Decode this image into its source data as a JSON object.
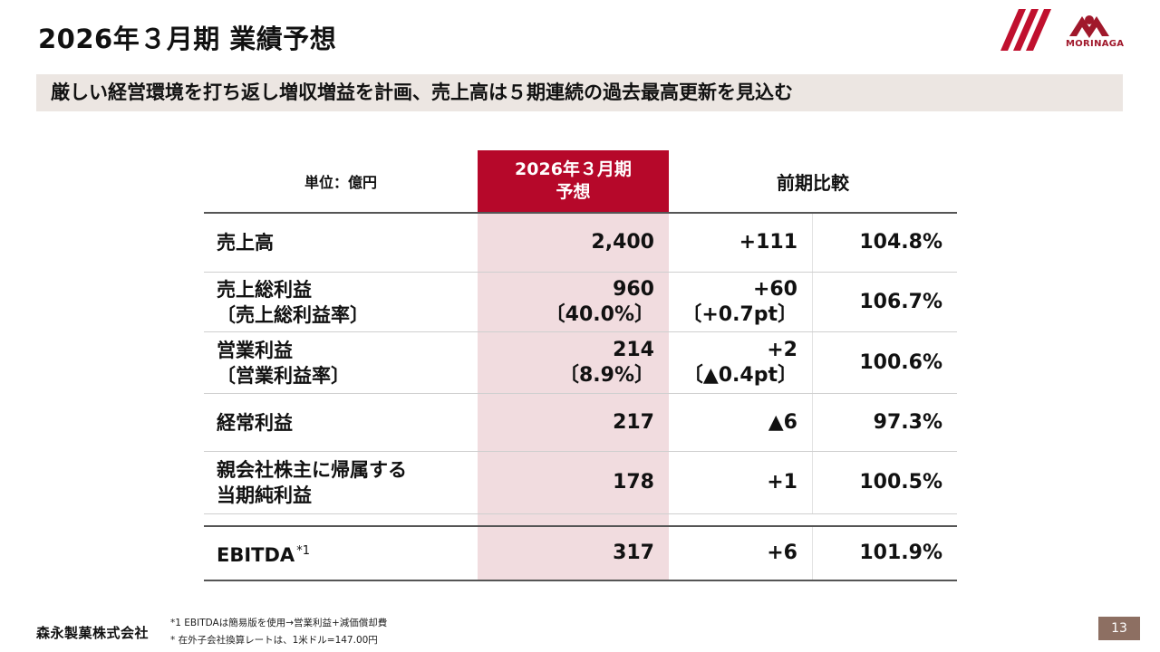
{
  "header": {
    "title": "2026年３月期 業績予想",
    "brand": "MORINAGA"
  },
  "subtitle": "厳しい経営環境を打ち返し増収増益を計画、売上高は５期連続の過去最高更新を見込む",
  "table": {
    "unit_label": "単位：億円",
    "forecast_header_line1": "2026年３月期",
    "forecast_header_line2": "予想",
    "compare_header": "前期比較",
    "rows": [
      {
        "label1": "売上高",
        "label2": "",
        "value1": "2,400",
        "value2": "",
        "diff1": "+111",
        "diff2": "",
        "pct": "104.8%"
      },
      {
        "label1": "売上総利益",
        "label2": "〔売上総利益率〕",
        "value1": "960",
        "value2": "〔40.0%〕",
        "diff1": "+60",
        "diff2": "〔+0.7pt〕",
        "pct": "106.7%"
      },
      {
        "label1": "営業利益",
        "label2": "〔営業利益率〕",
        "value1": "214",
        "value2": "〔8.9%〕",
        "diff1": "+2",
        "diff2": "〔▲0.4pt〕",
        "pct": "100.6%"
      },
      {
        "label1": "経常利益",
        "label2": "",
        "value1": "217",
        "value2": "",
        "diff1": "▲6",
        "diff2": "",
        "pct": "97.3%"
      },
      {
        "label1": "親会社株主に帰属する",
        "label2": "当期純利益",
        "value1": "178",
        "value2": "",
        "diff1": "+1",
        "diff2": "",
        "pct": "100.5%"
      }
    ],
    "ebitda": {
      "label": "EBITDA",
      "note_mark": "*1",
      "value": "317",
      "diff": "+6",
      "pct": "101.9%"
    }
  },
  "footer": {
    "company": "森永製菓株式会社",
    "note1": "*1 EBITDAは簡易版を使用→営業利益+減価償却費",
    "note2": "* 在外子会社換算レートは、1米ドル=147.00円",
    "page_number": "13"
  },
  "colors": {
    "accent": "#b6082a",
    "highlight_column": "#f1dcdf",
    "subtitle_band": "#ece6e2",
    "page_badge": "#8d6f62"
  }
}
